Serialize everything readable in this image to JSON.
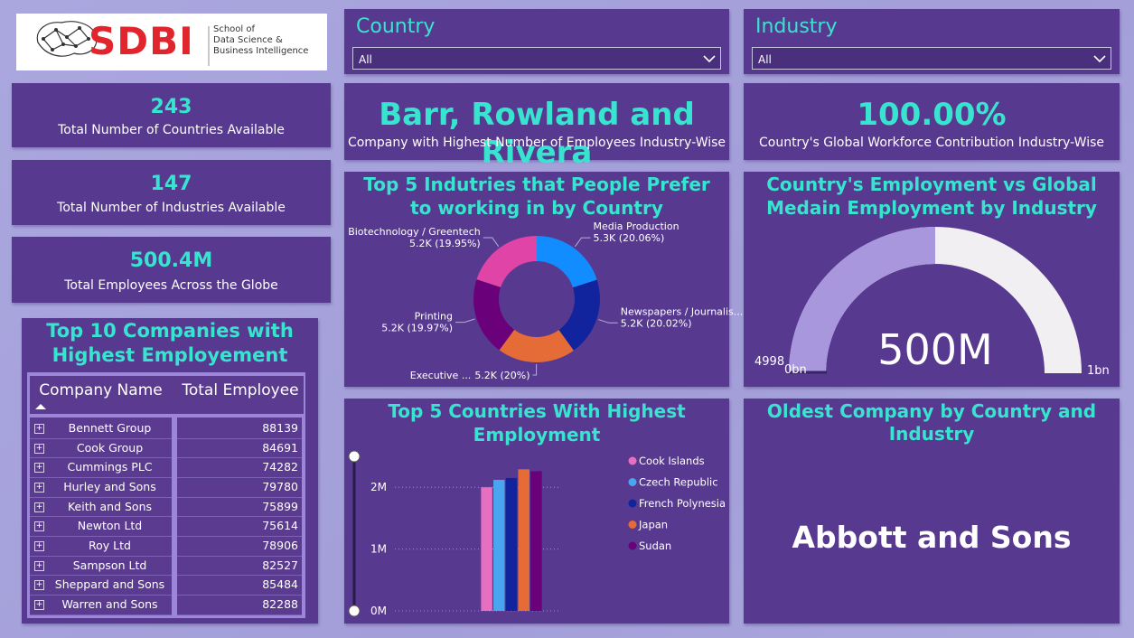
{
  "logo": {
    "mark": "SDBI",
    "lines": [
      "School of",
      "Data Science &",
      "Business Intelligence"
    ]
  },
  "slicers": [
    {
      "label": "Country",
      "value": "All"
    },
    {
      "label": "Industry",
      "value": "All"
    }
  ],
  "cards": [
    {
      "value": "243",
      "label": "Total Number of Countries Available"
    },
    {
      "value": "147",
      "label": "Total Number of Industries Available"
    },
    {
      "value": "500.4M",
      "label": "Total Employees Across the Globe"
    },
    {
      "value": "Barr, Rowland and Rivera",
      "label": "Company with Highest Number of Employees Industry-Wise"
    },
    {
      "value": "100.00%",
      "label": "Country's Global Workforce Contribution Industry-Wise"
    }
  ],
  "oldest_company": {
    "title": "Oldest Company by Country and Industry",
    "value": "Abbott and Sons"
  },
  "table": {
    "title": "Top 10 Companies with Highest Employement",
    "columns": [
      "Company Name",
      "Total Employee"
    ],
    "rows": [
      [
        "Bennett Group",
        88139
      ],
      [
        "Cook Group",
        84691
      ],
      [
        "Cummings PLC",
        74282
      ],
      [
        "Hurley and Sons",
        79780
      ],
      [
        "Keith and Sons",
        75899
      ],
      [
        "Newton Ltd",
        75614
      ],
      [
        "Roy Ltd",
        78906
      ],
      [
        "Sampson Ltd",
        82527
      ],
      [
        "Sheppard and Sons",
        85484
      ],
      [
        "Warren and Sons",
        82288
      ]
    ]
  },
  "chart_data": [
    {
      "type": "donut",
      "title": "Top 5 Indutries that People Prefer to working in by Country",
      "categories": [
        "Media Production",
        "Newspapers / Journalis...",
        "Executive ...",
        "Printing",
        "Biotechnology / Greentech"
      ],
      "values": [
        20.06,
        20.02,
        20,
        19.97,
        19.95
      ],
      "value_labels": [
        "5.3K (20.06%)",
        "5.2K (20.02%)",
        "5.2K (20%)",
        "5.2K (19.97%)",
        "5.2K (19.95%)"
      ],
      "colors": [
        "#118dff",
        "#12239e",
        "#e66c37",
        "#6b007b",
        "#e044a7"
      ]
    },
    {
      "type": "gauge",
      "title": "Country's Employment vs Global Medain Employment by Industry",
      "value": 500000000,
      "value_label": "500M",
      "min": {
        "value": 0,
        "label": "0bn"
      },
      "max": {
        "value": 1000000000,
        "label": "1bn"
      },
      "target": 4998,
      "color": "#a897dc",
      "track_color": "#f1eff2"
    },
    {
      "type": "bar",
      "title": "Top 5 Countries With Highest Employment",
      "categories": [
        null
      ],
      "series": [
        {
          "name": "Cook Islands",
          "color": "#e66fc2",
          "values": [
            2000000
          ]
        },
        {
          "name": "Czech Republic",
          "color": "#4aa5f0",
          "values": [
            2120000
          ]
        },
        {
          "name": "French Polynesia",
          "color": "#12239e",
          "values": [
            2150000
          ]
        },
        {
          "name": "Japan",
          "color": "#e66c37",
          "values": [
            2290000
          ]
        },
        {
          "name": "Sudan",
          "color": "#6b007b",
          "values": [
            2260000
          ]
        }
      ],
      "ylim": [
        0,
        2500000
      ],
      "yticks": [
        {
          "value": 0,
          "label": "0M"
        },
        {
          "value": 1000000,
          "label": "1M"
        },
        {
          "value": 2000000,
          "label": "2M"
        }
      ],
      "grid": true
    }
  ]
}
